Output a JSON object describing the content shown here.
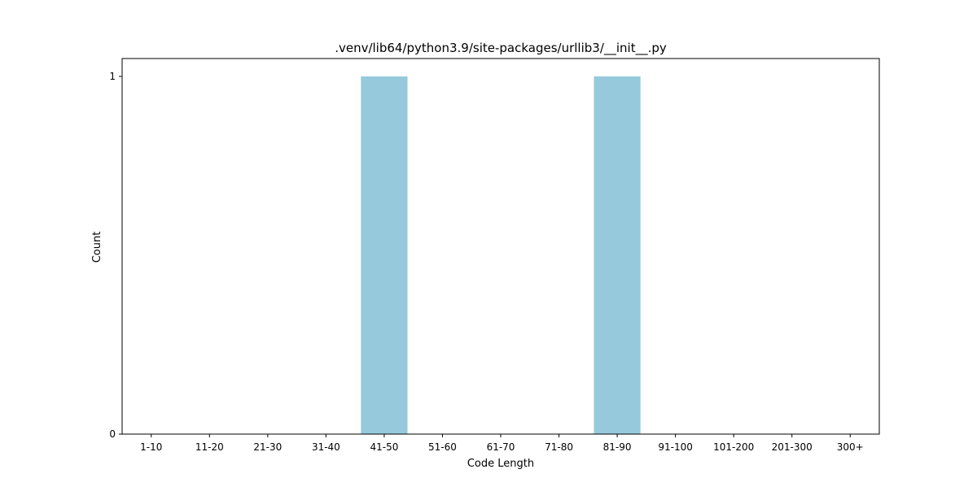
{
  "chart_data": {
    "type": "bar",
    "title": ".venv/lib64/python3.9/site-packages/urllib3/__init__.py",
    "xlabel": "Code Length",
    "ylabel": "Count",
    "categories": [
      "1-10",
      "11-20",
      "21-30",
      "31-40",
      "41-50",
      "51-60",
      "61-70",
      "71-80",
      "81-90",
      "91-100",
      "101-200",
      "201-300",
      "300+"
    ],
    "values": [
      0,
      0,
      0,
      0,
      1,
      0,
      0,
      0,
      1,
      0,
      0,
      0,
      0
    ],
    "ylim": [
      0,
      1.05
    ],
    "yticks": [
      0,
      1
    ],
    "bar_color": "#96c9dc",
    "grid": false,
    "legend": "none"
  }
}
